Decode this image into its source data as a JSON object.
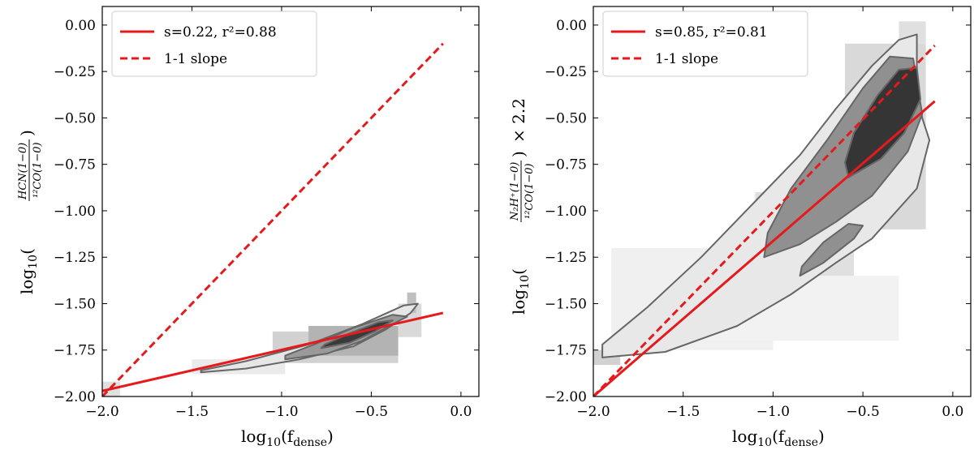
{
  "chart_data": [
    {
      "type": "line",
      "panel": "left",
      "xlabel": "log10(f_dense)",
      "xlabel_main": "log",
      "xlabel_base": "10",
      "xlabel_arg_open": "(f",
      "xlabel_arg_sub": "dense",
      "xlabel_arg_close": ")",
      "ylabel": "log10(HCN(1−0) / 12CO(1−0))",
      "ylabel_main": "log",
      "ylabel_base": "10",
      "ylabel_num": "HCN(1−0)",
      "ylabel_den": "¹²CO(1−0)",
      "ylabel_suffix": "",
      "xlim": [
        -2.0,
        0.1
      ],
      "ylim": [
        -2.0,
        0.1
      ],
      "xticks": [
        "-2.0",
        "-1.5",
        "-1.0",
        "-0.5",
        "0.0"
      ],
      "xtick_values": [
        -2.0,
        -1.5,
        -1.0,
        -0.5,
        0.0
      ],
      "yticks": [
        "0.00",
        "-0.25",
        "-0.50",
        "-0.75",
        "-1.00",
        "-1.25",
        "-1.50",
        "-1.75",
        "-2.00"
      ],
      "ytick_values": [
        0.0,
        -0.25,
        -0.5,
        -0.75,
        -1.0,
        -1.25,
        -1.5,
        -1.75,
        -2.0
      ],
      "legend_position": "top-left",
      "series": [
        {
          "name": "s=0.22, r²=0.88",
          "style": "solid",
          "color": "#e41a1c",
          "x": [
            -2.0,
            -0.1
          ],
          "y": [
            -1.97,
            -1.55
          ]
        },
        {
          "name": "1-1 slope",
          "style": "dashed",
          "color": "#e41a1c",
          "x": [
            -2.0,
            -0.1
          ],
          "y": [
            -2.0,
            -0.1
          ]
        }
      ],
      "density": {
        "cells": [
          {
            "x": [
              -1.5,
              -0.98
            ],
            "y": [
              -1.88,
              -1.8
            ],
            "level": 0.08
          },
          {
            "x": [
              -1.05,
              -0.35
            ],
            "y": [
              -1.82,
              -1.65
            ],
            "level": 0.18
          },
          {
            "x": [
              -0.85,
              -0.35
            ],
            "y": [
              -1.78,
              -1.62
            ],
            "level": 0.3
          },
          {
            "x": [
              -0.35,
              -0.22
            ],
            "y": [
              -1.68,
              -1.5
            ],
            "level": 0.15
          },
          {
            "x": [
              -2.0,
              -1.9
            ],
            "y": [
              -2.0,
              -1.92
            ],
            "level": 0.12
          },
          {
            "x": [
              -0.3,
              -0.25
            ],
            "y": [
              -1.55,
              -1.44
            ],
            "level": 0.25
          }
        ],
        "contours": [
          {
            "level": 1,
            "shade": "#e6e6e6",
            "points": [
              [
                -1.45,
                -1.87
              ],
              [
                -1.2,
                -1.85
              ],
              [
                -0.9,
                -1.8
              ],
              [
                -0.6,
                -1.73
              ],
              [
                -0.42,
                -1.64
              ],
              [
                -0.28,
                -1.55
              ],
              [
                -0.24,
                -1.5
              ],
              [
                -0.32,
                -1.51
              ],
              [
                -0.55,
                -1.61
              ],
              [
                -0.85,
                -1.72
              ],
              [
                -1.2,
                -1.81
              ],
              [
                -1.45,
                -1.86
              ]
            ]
          },
          {
            "level": 2,
            "shade": "#9a9a9a",
            "points": [
              [
                -0.98,
                -1.8
              ],
              [
                -0.75,
                -1.77
              ],
              [
                -0.55,
                -1.7
              ],
              [
                -0.4,
                -1.62
              ],
              [
                -0.3,
                -1.57
              ],
              [
                -0.38,
                -1.56
              ],
              [
                -0.6,
                -1.63
              ],
              [
                -0.82,
                -1.72
              ],
              [
                -0.98,
                -1.78
              ]
            ]
          },
          {
            "level": 3,
            "shade": "#3a3a3a",
            "points": [
              [
                -0.78,
                -1.74
              ],
              [
                -0.62,
                -1.71
              ],
              [
                -0.48,
                -1.65
              ],
              [
                -0.38,
                -1.59
              ],
              [
                -0.46,
                -1.6
              ],
              [
                -0.62,
                -1.66
              ],
              [
                -0.76,
                -1.72
              ]
            ]
          }
        ]
      }
    },
    {
      "type": "line",
      "panel": "right",
      "xlabel": "log10(f_dense)",
      "xlabel_main": "log",
      "xlabel_base": "10",
      "xlabel_arg_open": "(f",
      "xlabel_arg_sub": "dense",
      "xlabel_arg_close": ")",
      "ylabel": "log10(N2H+(1−0) / 12CO(1−0)) × 2.2",
      "ylabel_main": "log",
      "ylabel_base": "10",
      "ylabel_num": "N₂H⁺(1−0)",
      "ylabel_den": "¹²CO(1−0)",
      "ylabel_suffix": "× 2.2",
      "xlim": [
        -2.0,
        0.1
      ],
      "ylim": [
        -2.0,
        0.1
      ],
      "xticks": [
        "-2.0",
        "-1.5",
        "-1.0",
        "-0.5",
        "0.0"
      ],
      "xtick_values": [
        -2.0,
        -1.5,
        -1.0,
        -0.5,
        0.0
      ],
      "yticks": [
        "0.00",
        "-0.25",
        "-0.50",
        "-0.75",
        "-1.00",
        "-1.25",
        "-1.50",
        "-1.75",
        "-2.00"
      ],
      "ytick_values": [
        0.0,
        -0.25,
        -0.5,
        -0.75,
        -1.0,
        -1.25,
        -1.5,
        -1.75,
        -2.0
      ],
      "legend_position": "top-left",
      "series": [
        {
          "name": "s=0.85, r²=0.81",
          "style": "solid",
          "color": "#e41a1c",
          "x": [
            -2.0,
            -0.1
          ],
          "y": [
            -2.0,
            -0.41
          ]
        },
        {
          "name": "1-1 slope",
          "style": "dashed",
          "color": "#e41a1c",
          "x": [
            -2.0,
            -0.1
          ],
          "y": [
            -2.0,
            -0.11
          ]
        }
      ],
      "density": {
        "cells": [
          {
            "x": [
              -2.0,
              -1.85
            ],
            "y": [
              -1.83,
              -1.75
            ],
            "level": 0.18
          },
          {
            "x": [
              -1.9,
              -1.0
            ],
            "y": [
              -1.75,
              -1.2
            ],
            "level": 0.06
          },
          {
            "x": [
              -1.1,
              -0.55
            ],
            "y": [
              -1.45,
              -0.9
            ],
            "level": 0.12
          },
          {
            "x": [
              -0.6,
              -0.15
            ],
            "y": [
              -1.1,
              -0.1
            ],
            "level": 0.15
          },
          {
            "x": [
              -0.3,
              -0.15
            ],
            "y": [
              -0.1,
              0.02
            ],
            "level": 0.12
          },
          {
            "x": [
              -1.5,
              -0.3
            ],
            "y": [
              -1.7,
              -1.35
            ],
            "level": 0.05
          }
        ],
        "contours": [
          {
            "level": 1,
            "shade": "#e8e8e8",
            "points": [
              [
                -1.95,
                -1.79
              ],
              [
                -1.6,
                -1.76
              ],
              [
                -1.2,
                -1.62
              ],
              [
                -0.9,
                -1.45
              ],
              [
                -0.65,
                -1.28
              ],
              [
                -0.45,
                -1.15
              ],
              [
                -0.2,
                -0.88
              ],
              [
                -0.13,
                -0.62
              ],
              [
                -0.17,
                -0.5
              ],
              [
                -0.2,
                -0.32
              ],
              [
                -0.2,
                -0.05
              ],
              [
                -0.3,
                -0.08
              ],
              [
                -0.45,
                -0.22
              ],
              [
                -0.65,
                -0.45
              ],
              [
                -0.85,
                -0.7
              ],
              [
                -1.1,
                -0.95
              ],
              [
                -1.4,
                -1.25
              ],
              [
                -1.7,
                -1.52
              ],
              [
                -1.95,
                -1.72
              ]
            ]
          },
          {
            "level": 2,
            "shade": "#909090",
            "points": [
              [
                -1.05,
                -1.25
              ],
              [
                -0.85,
                -1.18
              ],
              [
                -0.65,
                -1.06
              ],
              [
                -0.45,
                -0.92
              ],
              [
                -0.25,
                -0.68
              ],
              [
                -0.17,
                -0.48
              ],
              [
                -0.22,
                -0.18
              ],
              [
                -0.35,
                -0.17
              ],
              [
                -0.5,
                -0.34
              ],
              [
                -0.7,
                -0.62
              ],
              [
                -0.9,
                -0.88
              ],
              [
                -1.03,
                -1.12
              ]
            ]
          },
          {
            "level": 2,
            "shade": "#909090",
            "points": [
              [
                -0.85,
                -1.35
              ],
              [
                -0.72,
                -1.28
              ],
              [
                -0.55,
                -1.15
              ],
              [
                -0.5,
                -1.08
              ],
              [
                -0.58,
                -1.07
              ],
              [
                -0.72,
                -1.17
              ],
              [
                -0.84,
                -1.3
              ]
            ]
          },
          {
            "level": 3,
            "shade": "#353535",
            "points": [
              [
                -0.58,
                -0.82
              ],
              [
                -0.4,
                -0.72
              ],
              [
                -0.27,
                -0.58
              ],
              [
                -0.18,
                -0.4
              ],
              [
                -0.2,
                -0.23
              ],
              [
                -0.3,
                -0.24
              ],
              [
                -0.42,
                -0.38
              ],
              [
                -0.55,
                -0.58
              ],
              [
                -0.6,
                -0.74
              ]
            ]
          }
        ]
      }
    }
  ]
}
